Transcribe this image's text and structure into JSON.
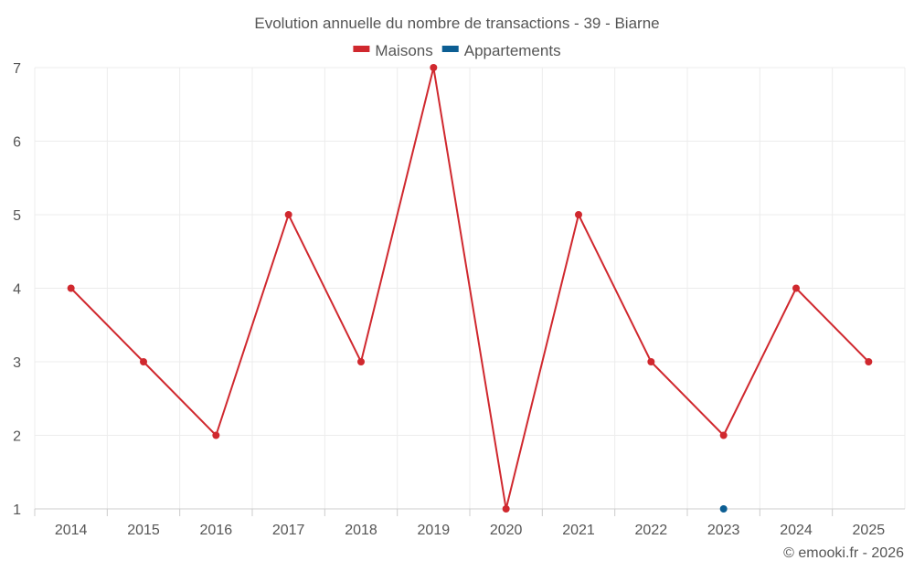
{
  "chart_data": {
    "type": "line",
    "title": "Evolution annuelle du nombre de transactions - 39 - Biarne",
    "categories": [
      "2014",
      "2015",
      "2016",
      "2017",
      "2018",
      "2019",
      "2020",
      "2021",
      "2022",
      "2023",
      "2024",
      "2025"
    ],
    "yticks": [
      "1",
      "2",
      "3",
      "4",
      "5",
      "6",
      "7"
    ],
    "ylim": [
      1,
      7
    ],
    "grid": true,
    "legend_position": "top-center",
    "series": [
      {
        "name": "Maisons",
        "color": "#d0282e",
        "values": [
          4,
          3,
          2,
          5,
          3,
          7,
          1,
          5,
          3,
          2,
          4,
          3
        ]
      },
      {
        "name": "Appartements",
        "color": "#0c5e93",
        "values": [
          null,
          null,
          null,
          null,
          null,
          null,
          null,
          null,
          null,
          1,
          null,
          null
        ]
      }
    ]
  },
  "credit": "© emooki.fr - 2026"
}
